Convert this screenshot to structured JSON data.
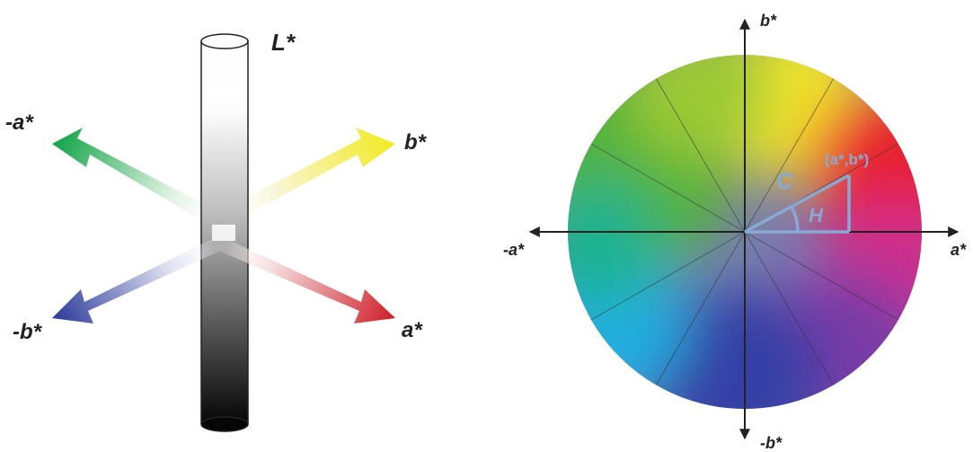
{
  "left_diagram": {
    "axis_lightness": "L*",
    "axis_neg_a": "-a*",
    "axis_pos_b": "b*",
    "axis_neg_b": "-b*",
    "axis_pos_a": "a*",
    "colors": {
      "green": "#14a64a",
      "yellow": "#f2ea2a",
      "blue": "#2d3b9c",
      "red": "#d01f2a"
    }
  },
  "right_diagram": {
    "axis_pos_b": "b*",
    "axis_neg_b": "-b*",
    "axis_neg_a": "-a*",
    "axis_pos_a": "a*",
    "chroma_label": "C",
    "hue_label": "H",
    "point_label": "(a*,b*)",
    "annotation_color": "#8aa8d4"
  }
}
